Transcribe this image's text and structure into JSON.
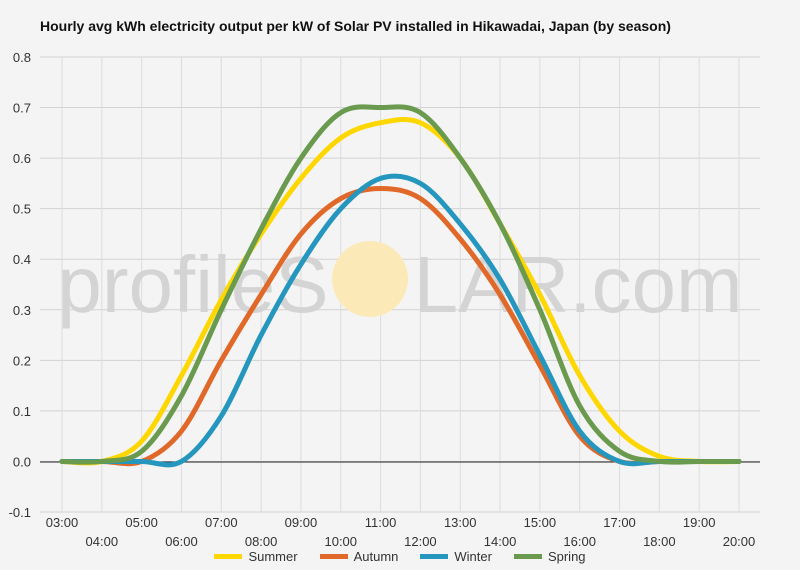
{
  "chart_data": {
    "type": "line",
    "title": "Hourly avg kWh electricity output per kW of Solar PV installed in Hikawadai, Japan (by season)",
    "xlabel": "",
    "ylabel": "",
    "x": [
      "03:00",
      "04:00",
      "05:00",
      "06:00",
      "07:00",
      "08:00",
      "09:00",
      "10:00",
      "11:00",
      "12:00",
      "13:00",
      "14:00",
      "15:00",
      "16:00",
      "17:00",
      "18:00",
      "19:00",
      "20:00"
    ],
    "ylim": [
      -0.1,
      0.8
    ],
    "yticks": [
      "-0.1",
      "0.0",
      "0.1",
      "0.2",
      "0.3",
      "0.4",
      "0.5",
      "0.6",
      "0.7",
      "0.8"
    ],
    "grid": true,
    "legend_position": "bottom",
    "series": [
      {
        "name": "Summer",
        "color": "#ffd700",
        "values": [
          0.0,
          0.0,
          0.04,
          0.17,
          0.32,
          0.45,
          0.56,
          0.64,
          0.67,
          0.67,
          0.6,
          0.47,
          0.33,
          0.17,
          0.06,
          0.01,
          0.0,
          0.0
        ]
      },
      {
        "name": "Autumn",
        "color": "#e0692a",
        "values": [
          0.0,
          0.0,
          0.0,
          0.06,
          0.2,
          0.33,
          0.45,
          0.52,
          0.54,
          0.52,
          0.44,
          0.33,
          0.19,
          0.05,
          0.0,
          0.0,
          0.0,
          0.0
        ]
      },
      {
        "name": "Winter",
        "color": "#2596be",
        "values": [
          0.0,
          0.0,
          0.0,
          0.0,
          0.09,
          0.25,
          0.39,
          0.5,
          0.56,
          0.55,
          0.47,
          0.36,
          0.21,
          0.06,
          0.0,
          0.0,
          0.0,
          0.0
        ]
      },
      {
        "name": "Spring",
        "color": "#6a9a4e",
        "values": [
          0.0,
          0.0,
          0.02,
          0.13,
          0.3,
          0.46,
          0.6,
          0.69,
          0.7,
          0.69,
          0.6,
          0.47,
          0.3,
          0.11,
          0.02,
          0.0,
          0.0,
          0.0
        ]
      }
    ]
  },
  "watermark": {
    "text_left": "profileS",
    "text_right": "LAR.com",
    "logo": "sun-circle-icon"
  }
}
